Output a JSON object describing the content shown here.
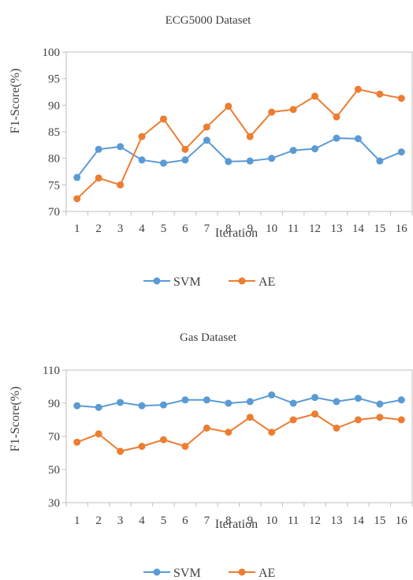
{
  "chart_data": [
    {
      "type": "line",
      "title": "ECG5000 Dataset",
      "xlabel": "Iteration",
      "ylabel": "F1-Score(%)",
      "categories": [
        "1",
        "2",
        "3",
        "4",
        "5",
        "6",
        "7",
        "8",
        "9",
        "10",
        "11",
        "12",
        "13",
        "14",
        "15",
        "16"
      ],
      "ylim": [
        70,
        100
      ],
      "yticks": [
        70,
        75,
        80,
        85,
        90,
        95,
        100
      ],
      "grid": false,
      "legend_position": "bottom",
      "series": [
        {
          "name": "SVM",
          "color": "#5b9bd5",
          "values": [
            76.4,
            81.7,
            82.2,
            79.7,
            79.1,
            79.7,
            83.4,
            79.4,
            79.5,
            80.0,
            81.5,
            81.8,
            83.8,
            83.7,
            79.5,
            81.2
          ]
        },
        {
          "name": "AE",
          "color": "#ed7d31",
          "values": [
            72.4,
            76.3,
            75.0,
            84.1,
            87.4,
            81.7,
            85.9,
            89.8,
            84.1,
            88.7,
            89.2,
            91.7,
            87.8,
            93.0,
            92.1,
            91.3
          ]
        }
      ]
    },
    {
      "type": "line",
      "title": "Gas Dataset",
      "xlabel": "Iteration",
      "ylabel": "F1-Score(%)",
      "categories": [
        "1",
        "2",
        "3",
        "4",
        "5",
        "6",
        "7",
        "8",
        "9",
        "10",
        "11",
        "12",
        "13",
        "14",
        "15",
        "16"
      ],
      "ylim": [
        30,
        110
      ],
      "yticks": [
        30,
        50,
        70,
        90,
        110
      ],
      "grid": false,
      "legend_position": "bottom",
      "series": [
        {
          "name": "SVM",
          "color": "#5b9bd5",
          "values": [
            88.5,
            87.5,
            90.5,
            88.5,
            89.0,
            92.0,
            92.0,
            90.0,
            91.0,
            95.0,
            90.0,
            93.5,
            91.0,
            93.0,
            89.5,
            92.0
          ]
        },
        {
          "name": "AE",
          "color": "#ed7d31",
          "values": [
            66.5,
            71.5,
            61.0,
            64.0,
            68.0,
            64.0,
            75.0,
            72.5,
            81.5,
            72.5,
            80.0,
            83.5,
            75.0,
            80.0,
            81.5,
            80.0
          ]
        }
      ]
    }
  ]
}
